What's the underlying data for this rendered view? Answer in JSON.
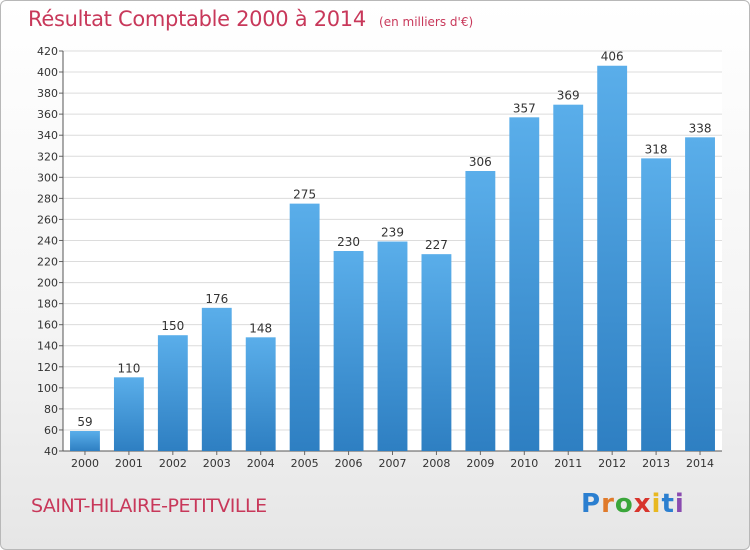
{
  "header": {
    "title": "Résultat Comptable 2000 à 2014",
    "subtitle": "(en milliers d'€)"
  },
  "footer": {
    "place": "SAINT-HILAIRE-PETITVILLE",
    "logo": "Proxiti",
    "logo_letters": [
      {
        "ch": "P",
        "color": "#2b7fd0"
      },
      {
        "ch": "r",
        "color": "#e07a2a"
      },
      {
        "ch": "o",
        "color": "#3aa63a"
      },
      {
        "ch": "x",
        "color": "#d8342c"
      },
      {
        "ch": "i",
        "color": "#e8b820"
      },
      {
        "ch": "t",
        "color": "#2b7fd0"
      },
      {
        "ch": "i",
        "color": "#8a4bb0"
      }
    ]
  },
  "colors": {
    "title": "#c8385a",
    "bar_light": "#5aaeea",
    "bar_dark": "#2e7fc2",
    "grid": "#dcdcdc"
  },
  "chart_data": {
    "type": "bar",
    "categories": [
      "2000",
      "2001",
      "2002",
      "2003",
      "2004",
      "2005",
      "2006",
      "2007",
      "2008",
      "2009",
      "2010",
      "2011",
      "2012",
      "2013",
      "2014"
    ],
    "values": [
      59,
      110,
      150,
      176,
      148,
      275,
      230,
      239,
      227,
      306,
      357,
      369,
      406,
      318,
      338
    ],
    "title": "Résultat Comptable 2000 à 2014",
    "subtitle": "(en milliers d'€)",
    "ylim": [
      40,
      420
    ],
    "ytick_step": 20,
    "grid": true
  }
}
